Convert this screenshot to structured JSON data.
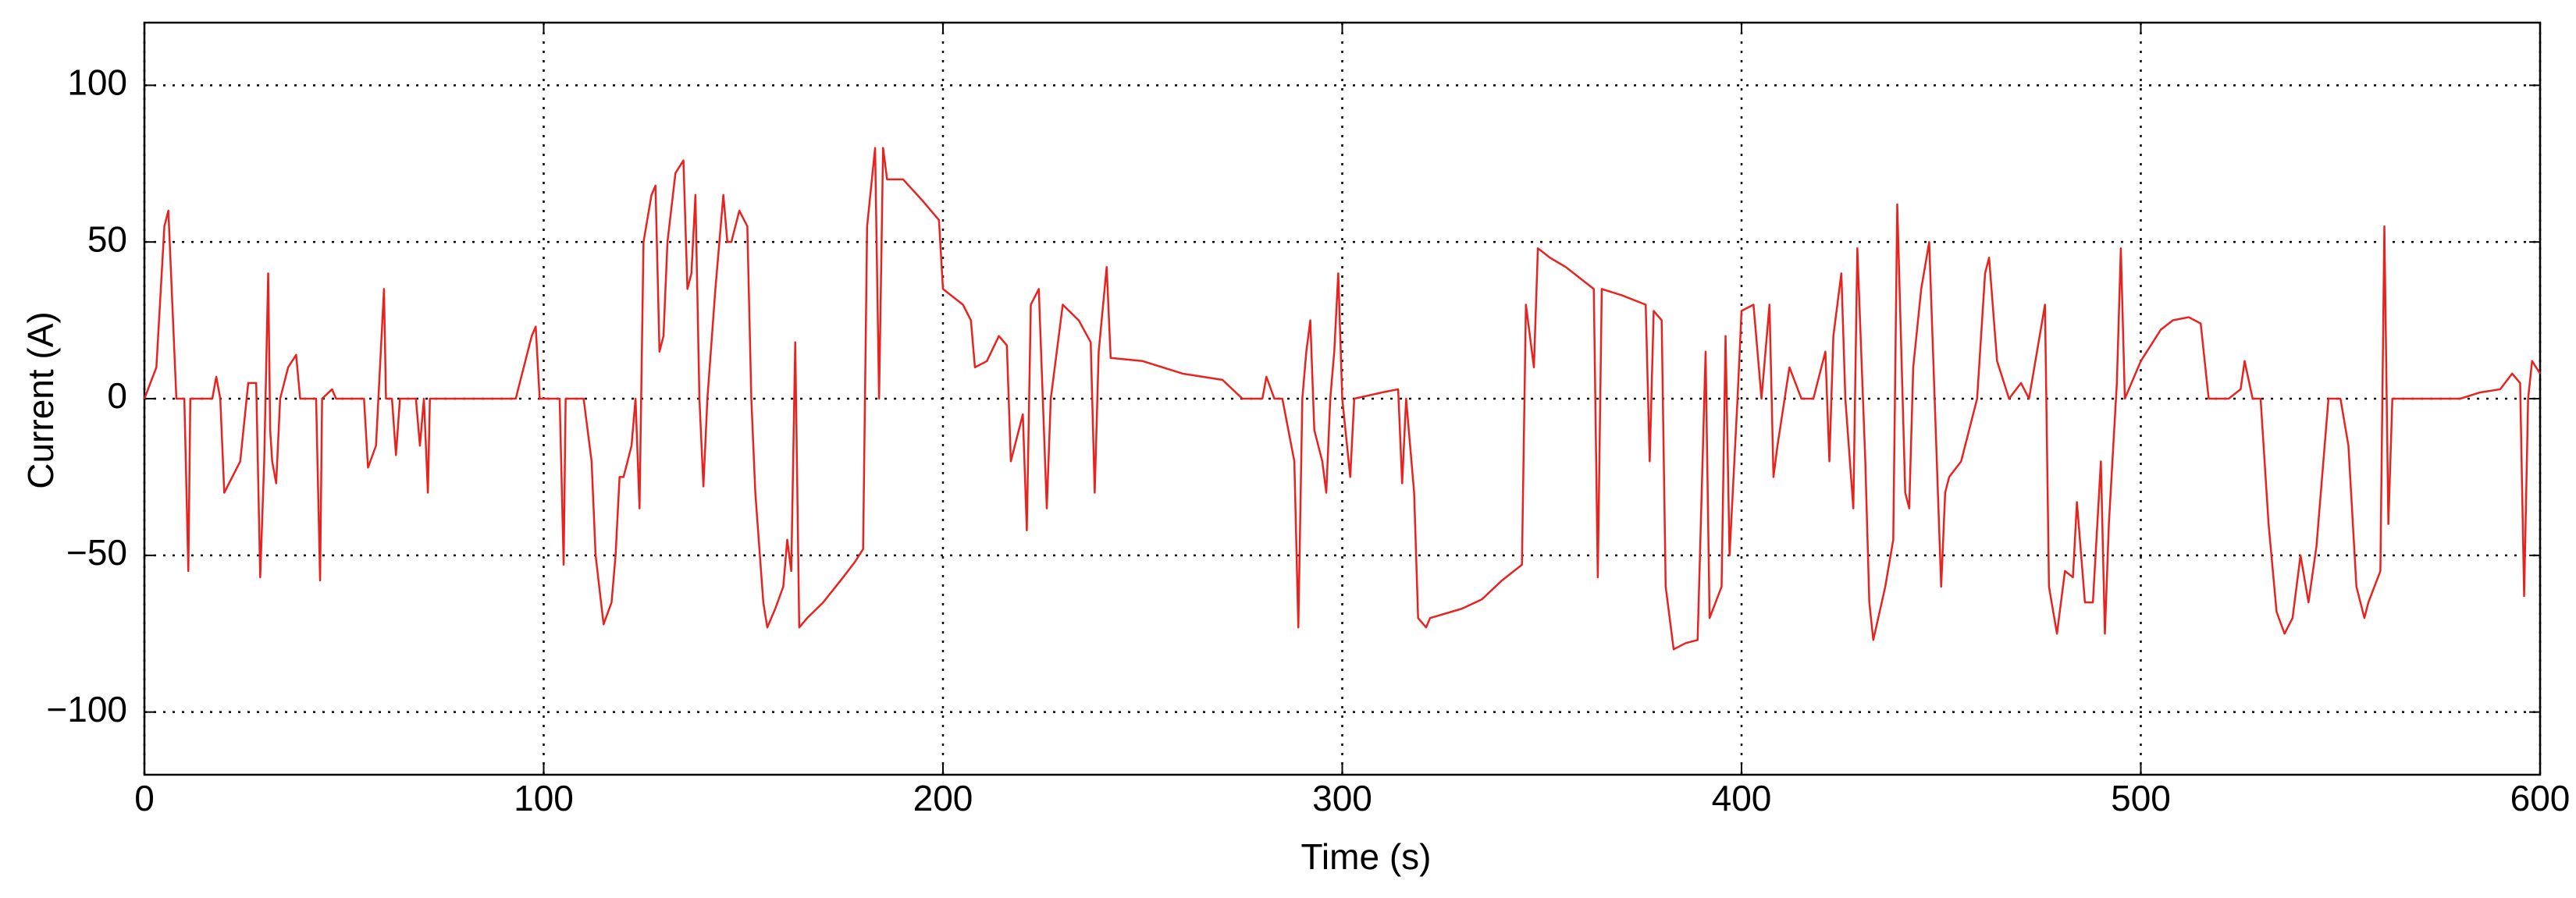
{
  "chart_data": {
    "type": "line",
    "x_label": "Time (s)",
    "y_label": "Current (A)",
    "color": "#e8231f",
    "grid": true,
    "xlim": [
      0,
      600
    ],
    "xticks": [
      0,
      100,
      200,
      300,
      400,
      500,
      600
    ],
    "ylim": [
      -120,
      120
    ],
    "yticks": [
      {
        "value": -100,
        "label": "−100"
      },
      {
        "value": -50,
        "label": "−50"
      },
      0,
      50,
      100
    ],
    "x": [
      0,
      3,
      5,
      6,
      7,
      8,
      10,
      11,
      11.5,
      17,
      18,
      19,
      20,
      24,
      26,
      28,
      29,
      30,
      31,
      31.5,
      32,
      33,
      34,
      36,
      38,
      39,
      43,
      44,
      44.5,
      47,
      48,
      55,
      56,
      58,
      60,
      60.5,
      62,
      63,
      64,
      68,
      69,
      70,
      71,
      71.5,
      93,
      97,
      98,
      99,
      100,
      104,
      105,
      105.5,
      110,
      112,
      113,
      115,
      117,
      118,
      119,
      120,
      122,
      123,
      124,
      125,
      127,
      128,
      129,
      130,
      131,
      133,
      135,
      136,
      137,
      138,
      139,
      140,
      141,
      143,
      145,
      146,
      147,
      149,
      151,
      152,
      153,
      155,
      156,
      158,
      160,
      161,
      162,
      163,
      164,
      166,
      170,
      175,
      178,
      180,
      181,
      183,
      184,
      185,
      186,
      190,
      195,
      199,
      200,
      205,
      207,
      208,
      211,
      214,
      216,
      217,
      220,
      221,
      222,
      224,
      225,
      226,
      227,
      230,
      234,
      237,
      238,
      239,
      241,
      242,
      250,
      255,
      260,
      265,
      270,
      275,
      280,
      281,
      283,
      285,
      288,
      289,
      290,
      291,
      292,
      293,
      295,
      296,
      297,
      298,
      299,
      300,
      302,
      303,
      310,
      314,
      315,
      316,
      318,
      319,
      321,
      322,
      330,
      335,
      340,
      345,
      346,
      348,
      349,
      352,
      356,
      360,
      363,
      364,
      365,
      370,
      376,
      377,
      378,
      380,
      381,
      383,
      386,
      389,
      391,
      392,
      395,
      396,
      397,
      399,
      400,
      403,
      405,
      407,
      408,
      409,
      412,
      415,
      418,
      421,
      422,
      423,
      425,
      426,
      428,
      429,
      431,
      432,
      433,
      436,
      438,
      439,
      441,
      442,
      443,
      445,
      447,
      450,
      451,
      452,
      455,
      457,
      459,
      461,
      462,
      464,
      467,
      470,
      472,
      476,
      477,
      479,
      481,
      483,
      484,
      486,
      488,
      490,
      491,
      492,
      494,
      495,
      496,
      500,
      503,
      505,
      508,
      512,
      515,
      517,
      522,
      525,
      526,
      528,
      530,
      532,
      534,
      536,
      538,
      540,
      542,
      544,
      547,
      550,
      552,
      554,
      556,
      557,
      560,
      561,
      562,
      563,
      565,
      570,
      575,
      580,
      585,
      590,
      593,
      595,
      596,
      597,
      598,
      600
    ],
    "values": [
      0,
      10,
      55,
      60,
      30,
      0,
      0,
      -55,
      0,
      0,
      7,
      0,
      -30,
      -20,
      5,
      5,
      -57,
      -20,
      40,
      -10,
      -20,
      -27,
      0,
      10,
      14,
      0,
      0,
      -58,
      0,
      3,
      0,
      0,
      -22,
      -15,
      35,
      0,
      0,
      -18,
      0,
      0,
      -15,
      0,
      -30,
      0,
      0,
      20,
      23,
      0,
      0,
      0,
      -53,
      0,
      0,
      -20,
      -50,
      -72,
      -65,
      -50,
      -25,
      -25,
      -15,
      0,
      -35,
      50,
      65,
      68,
      15,
      20,
      50,
      72,
      76,
      35,
      40,
      65,
      0,
      -28,
      0,
      35,
      65,
      50,
      50,
      60,
      55,
      0,
      -30,
      -65,
      -73,
      -67,
      -60,
      -45,
      -55,
      18,
      -73,
      -70,
      -65,
      -57,
      -52,
      -48,
      55,
      80,
      0,
      80,
      70,
      70,
      63,
      57,
      35,
      30,
      25,
      10,
      12,
      20,
      17,
      -20,
      -5,
      -42,
      30,
      35,
      0,
      -35,
      0,
      30,
      25,
      18,
      -30,
      15,
      42,
      13,
      12,
      10,
      8,
      7,
      6,
      0,
      0,
      7,
      0,
      0,
      -20,
      -73,
      0,
      15,
      25,
      -10,
      -20,
      -30,
      0,
      15,
      40,
      0,
      -25,
      0,
      2,
      3,
      -27,
      0,
      -30,
      -70,
      -73,
      -70,
      -67,
      -64,
      -58,
      -53,
      30,
      10,
      48,
      45,
      42,
      38,
      35,
      -57,
      35,
      33,
      30,
      -20,
      28,
      25,
      -60,
      -80,
      -78,
      -77,
      15,
      -70,
      -60,
      20,
      -50,
      0,
      28,
      30,
      0,
      30,
      -25,
      -15,
      10,
      0,
      0,
      15,
      -20,
      20,
      40,
      0,
      -35,
      48,
      -20,
      -65,
      -77,
      -60,
      -45,
      62,
      -30,
      -35,
      10,
      35,
      50,
      -60,
      -30,
      -25,
      -20,
      -10,
      0,
      40,
      45,
      12,
      0,
      5,
      0,
      30,
      -60,
      -75,
      -55,
      -57,
      -33,
      -65,
      -65,
      -20,
      -75,
      -40,
      5,
      48,
      0,
      12,
      18,
      22,
      25,
      26,
      24,
      0,
      0,
      3,
      12,
      0,
      0,
      -40,
      -68,
      -75,
      -70,
      -50,
      -65,
      -47,
      0,
      0,
      -15,
      -60,
      -70,
      -65,
      -55,
      55,
      -40,
      0,
      0,
      0,
      0,
      0,
      2,
      3,
      8,
      5,
      -63,
      0,
      12,
      8
    ]
  }
}
